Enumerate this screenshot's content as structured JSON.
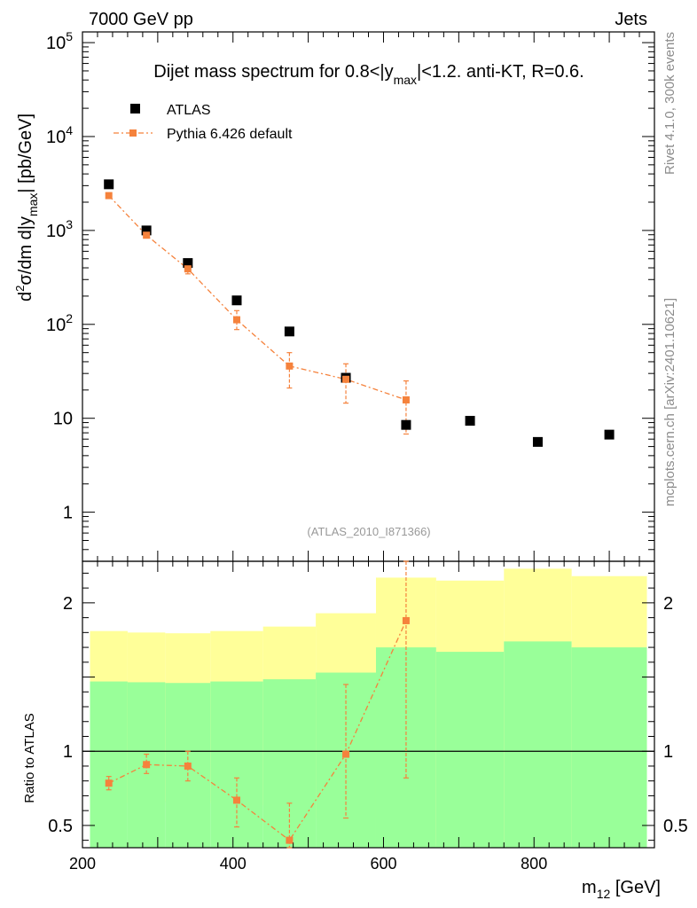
{
  "header": {
    "left": "7000 GeV pp",
    "right": "Jets"
  },
  "side": {
    "rivet": "Rivet 4.1.0,  300k events",
    "mcplots": "mcplots.cern.ch [arXiv:2401.10621]"
  },
  "colors": {
    "data": "#000000",
    "mc": "#f5823c",
    "band_outer": "#ffff99",
    "band_inner": "#99ff99"
  },
  "chart_data": [
    {
      "type": "scatter",
      "title_parts": {
        "pre": "Dijet mass spectrum for 0.8<|y",
        "sub": "max",
        "post": "|<1.2.  anti-KT, R=0.6."
      },
      "ylabel_parts": {
        "d": "d",
        "sup": "2",
        "mid": "σ/dm d|y",
        "sub": "max",
        "post": "| [pb/GeV]"
      },
      "yscale": "log",
      "xlim": [
        200,
        960
      ],
      "ylim": [
        0.3,
        130000
      ],
      "ytick_labels": [
        {
          "v": 1,
          "t": "1",
          "e": ""
        },
        {
          "v": 10,
          "t": "10",
          "e": ""
        },
        {
          "v": 100,
          "t": "10",
          "e": "2"
        },
        {
          "v": 1000,
          "t": "10",
          "e": "3"
        },
        {
          "v": 10000,
          "t": "10",
          "e": "4"
        },
        {
          "v": 100000,
          "t": "10",
          "e": "5"
        }
      ],
      "annotation": "(ATLAS_2010_I871366)",
      "legend_position": "top-left",
      "series": [
        {
          "name": "ATLAS",
          "x": [
            235,
            285,
            340,
            405,
            475,
            550,
            630,
            715,
            805,
            900
          ],
          "y": [
            3100,
            1000,
            450,
            180,
            84,
            27,
            8.5,
            9.4,
            5.6,
            6.7
          ]
        },
        {
          "name": "Pythia 6.426 default",
          "x": [
            235,
            285,
            340,
            405,
            475,
            550,
            630
          ],
          "y": [
            2350,
            890,
            390,
            112,
            36,
            26,
            15.7
          ],
          "yerr_lo": [
            2200,
            830,
            345,
            88,
            21,
            14.5,
            6.8
          ],
          "yerr_hi": [
            2500,
            950,
            430,
            140,
            50,
            38,
            25
          ]
        }
      ]
    },
    {
      "type": "line",
      "ylabel": "Ratio to ATLAS",
      "xlabel_parts": {
        "m": "m",
        "sub": "12",
        "post": " [GeV]"
      },
      "xlim": [
        200,
        960
      ],
      "ylim": [
        0.35,
        2.28
      ],
      "xtick_labels": [
        200,
        400,
        600,
        800
      ],
      "ytick_labels": [
        {
          "v": 0.5,
          "t": "0.5"
        },
        {
          "v": 1,
          "t": "1"
        },
        {
          "v": 2,
          "t": "2"
        }
      ],
      "bands": {
        "edges": [
          210,
          260,
          310,
          370,
          440,
          510,
          590,
          670,
          760,
          850,
          950
        ],
        "outer_lo": [
          0.65,
          0.655,
          0.665,
          0.65,
          0.635,
          0.55,
          0.35,
          0.37,
          0.35,
          0.35
        ],
        "outer_hi": [
          1.81,
          1.8,
          1.795,
          1.81,
          1.84,
          1.93,
          2.17,
          2.15,
          2.23,
          2.18
        ],
        "inner_lo": [
          0.35,
          0.35,
          0.35,
          0.35,
          0.35,
          0.35,
          0.35,
          0.35,
          0.35,
          0.35
        ],
        "inner_hi": [
          1.47,
          1.465,
          1.46,
          1.47,
          1.485,
          1.53,
          1.7,
          1.67,
          1.74,
          1.7
        ]
      },
      "series": [
        {
          "name": "Pythia 6.426 default",
          "x": [
            235,
            285,
            340,
            405,
            475,
            550,
            630
          ],
          "y": [
            0.785,
            0.91,
            0.9,
            0.67,
            0.4,
            0.98,
            1.88
          ],
          "yerr_lo": [
            0.74,
            0.85,
            0.8,
            0.49,
            0.35,
            0.55,
            0.82
          ],
          "yerr_hi": [
            0.83,
            0.98,
            1.0,
            0.82,
            0.65,
            1.45,
            2.28
          ]
        }
      ]
    }
  ]
}
